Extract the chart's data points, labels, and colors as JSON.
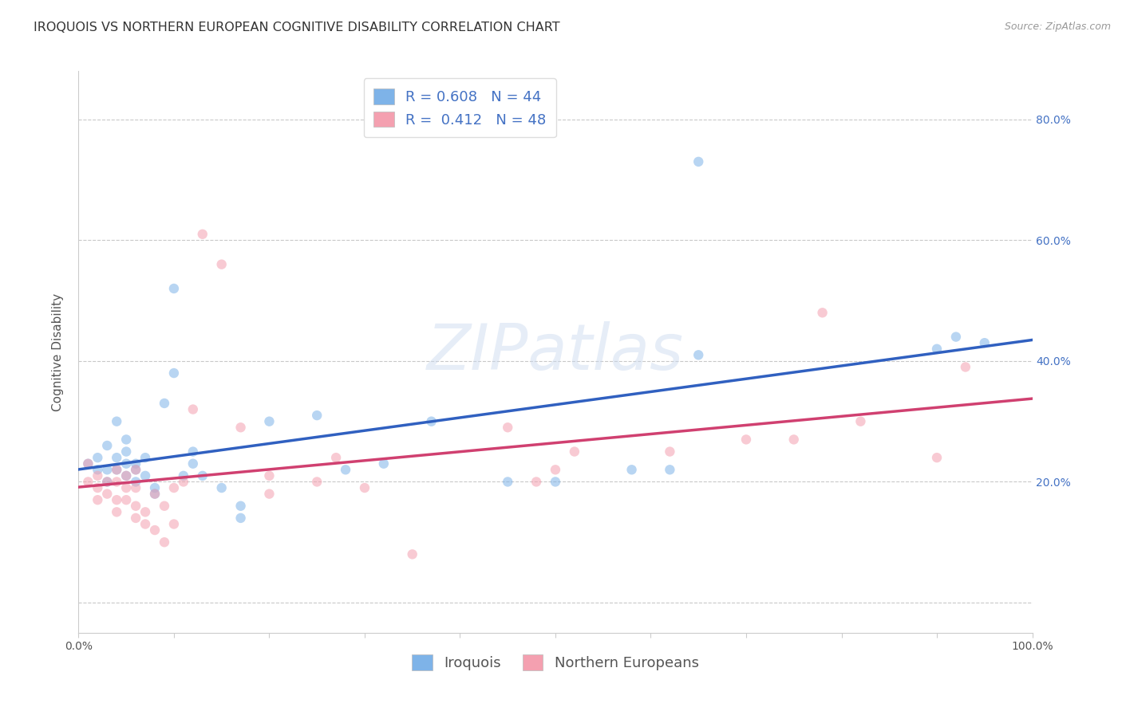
{
  "title": "IROQUOIS VS NORTHERN EUROPEAN COGNITIVE DISABILITY CORRELATION CHART",
  "source": "Source: ZipAtlas.com",
  "ylabel": "Cognitive Disability",
  "xlabel": "",
  "watermark": "ZIPatlas",
  "legend_label1": "Iroquois",
  "legend_label2": "Northern Europeans",
  "R1": 0.608,
  "N1": 44,
  "R2": 0.412,
  "N2": 48,
  "xlim": [
    0,
    1.0
  ],
  "ylim": [
    -0.05,
    0.88
  ],
  "xticks": [
    0.0,
    0.1,
    0.2,
    0.3,
    0.4,
    0.5,
    0.6,
    0.7,
    0.8,
    0.9,
    1.0
  ],
  "yticks": [
    0.0,
    0.2,
    0.4,
    0.6,
    0.8
  ],
  "right_ytick_labels": [
    "",
    "20.0%",
    "40.0%",
    "60.0%",
    "80.0%"
  ],
  "xtick_labels": [
    "0.0%",
    "",
    "",
    "",
    "",
    "",
    "",
    "",
    "",
    "",
    "100.0%"
  ],
  "color_blue": "#7EB3E8",
  "color_pink": "#F4A0B0",
  "line_blue": "#3060C0",
  "line_pink": "#D04070",
  "scatter_alpha": 0.55,
  "scatter_size": 80,
  "blue_x": [
    0.01,
    0.02,
    0.02,
    0.03,
    0.03,
    0.03,
    0.04,
    0.04,
    0.04,
    0.05,
    0.05,
    0.05,
    0.05,
    0.06,
    0.06,
    0.06,
    0.07,
    0.07,
    0.08,
    0.08,
    0.09,
    0.1,
    0.1,
    0.11,
    0.12,
    0.12,
    0.13,
    0.15,
    0.17,
    0.17,
    0.2,
    0.25,
    0.28,
    0.32,
    0.37,
    0.45,
    0.5,
    0.58,
    0.62,
    0.65,
    0.65,
    0.9,
    0.92,
    0.95
  ],
  "blue_y": [
    0.23,
    0.22,
    0.24,
    0.2,
    0.22,
    0.26,
    0.22,
    0.24,
    0.3,
    0.21,
    0.23,
    0.25,
    0.27,
    0.2,
    0.22,
    0.23,
    0.21,
    0.24,
    0.18,
    0.19,
    0.33,
    0.52,
    0.38,
    0.21,
    0.25,
    0.23,
    0.21,
    0.19,
    0.16,
    0.14,
    0.3,
    0.31,
    0.22,
    0.23,
    0.3,
    0.2,
    0.2,
    0.22,
    0.22,
    0.41,
    0.73,
    0.42,
    0.44,
    0.43
  ],
  "pink_x": [
    0.01,
    0.01,
    0.02,
    0.02,
    0.02,
    0.03,
    0.03,
    0.04,
    0.04,
    0.04,
    0.04,
    0.05,
    0.05,
    0.05,
    0.06,
    0.06,
    0.06,
    0.06,
    0.07,
    0.07,
    0.08,
    0.08,
    0.09,
    0.09,
    0.1,
    0.1,
    0.11,
    0.12,
    0.13,
    0.15,
    0.17,
    0.2,
    0.2,
    0.25,
    0.27,
    0.3,
    0.35,
    0.45,
    0.48,
    0.5,
    0.52,
    0.62,
    0.7,
    0.75,
    0.78,
    0.82,
    0.9,
    0.93
  ],
  "pink_y": [
    0.2,
    0.23,
    0.17,
    0.19,
    0.21,
    0.18,
    0.2,
    0.15,
    0.17,
    0.2,
    0.22,
    0.17,
    0.19,
    0.21,
    0.14,
    0.16,
    0.19,
    0.22,
    0.13,
    0.15,
    0.18,
    0.12,
    0.16,
    0.1,
    0.19,
    0.13,
    0.2,
    0.32,
    0.61,
    0.56,
    0.29,
    0.18,
    0.21,
    0.2,
    0.24,
    0.19,
    0.08,
    0.29,
    0.2,
    0.22,
    0.25,
    0.25,
    0.27,
    0.27,
    0.48,
    0.3,
    0.24,
    0.39
  ],
  "title_fontsize": 11.5,
  "axis_fontsize": 11,
  "tick_fontsize": 10,
  "legend_fontsize": 13
}
